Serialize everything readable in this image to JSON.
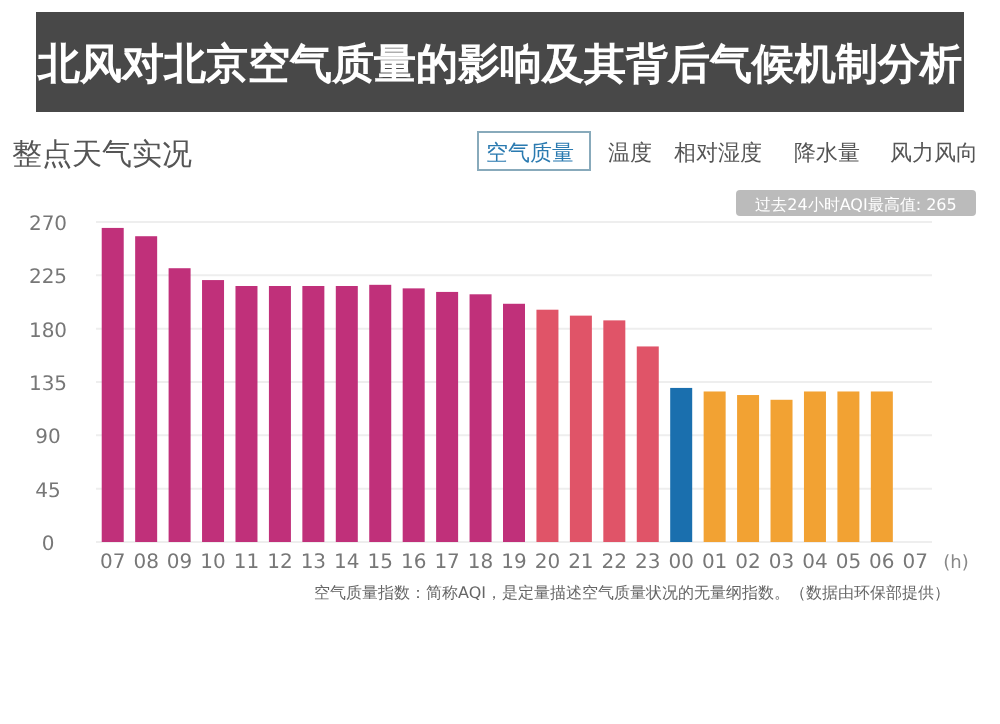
{
  "chart_data": {
    "type": "bar",
    "title": "整点天气实况",
    "categories": [
      "07",
      "08",
      "09",
      "10",
      "11",
      "12",
      "13",
      "14",
      "15",
      "16",
      "17",
      "18",
      "19",
      "20",
      "21",
      "22",
      "23",
      "00",
      "01",
      "02",
      "03",
      "04",
      "05",
      "06",
      "07"
    ],
    "values": [
      265,
      258,
      231,
      221,
      216,
      216,
      216,
      216,
      217,
      214,
      211,
      209,
      201,
      196,
      191,
      187,
      165,
      130,
      127,
      124,
      120,
      127,
      127,
      127,
      null
    ],
    "colors": [
      "#c0307a",
      "#c0307a",
      "#c0307a",
      "#c0307a",
      "#c0307a",
      "#c0307a",
      "#c0307a",
      "#c0307a",
      "#c0307a",
      "#c0307a",
      "#c0307a",
      "#c0307a",
      "#c0307a",
      "#e05468",
      "#e05468",
      "#e05468",
      "#e05468",
      "#1a6fae",
      "#f2a233",
      "#f2a233",
      "#f2a233",
      "#f2a233",
      "#f2a233",
      "#f2a233",
      null
    ],
    "xlabel": "(h)",
    "ylim": [
      0,
      270
    ],
    "yticks": [
      0,
      45,
      90,
      135,
      180,
      225,
      270
    ],
    "grid": "y",
    "annotations": [
      "空气质量",
      "温度",
      "相对湿度",
      "降水量",
      "风力风向",
      "过去24小时AQI最高值: 265",
      "空气质量指数：简称AQI，是定量描述空气质量状况的无量纲指数。（数据由环保部提供）",
      "北风对北京空气质量的影响及其背后气候机制分析"
    ]
  }
}
